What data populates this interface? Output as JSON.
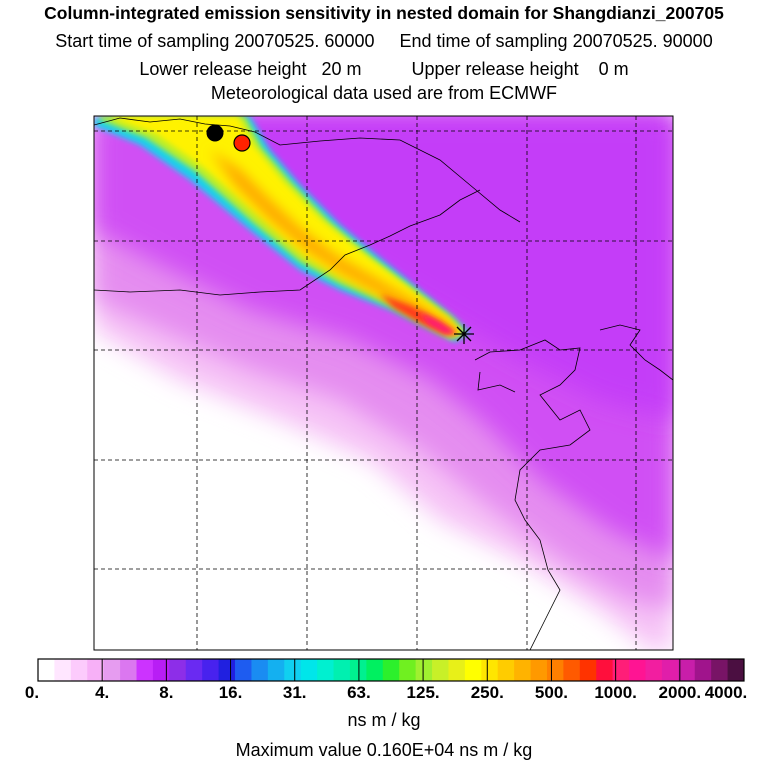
{
  "header": {
    "title": "Column-integrated emission sensitivity in nested domain for Shangdianzi_200705",
    "sampling_line": "Start time of sampling 20070525. 60000     End time of sampling 20070525. 90000",
    "release_line": "Lower release height   20 m          Upper release height    0 m",
    "met_line": "Meteorological data used are from ECMWF"
  },
  "colorbar": {
    "labels": [
      "0.",
      "4.",
      "8.",
      "16.",
      "31.",
      "63.",
      "125.",
      "250.",
      "500.",
      "1000.",
      "2000.",
      "4000."
    ],
    "colors": [
      "#ffffff",
      "#ffe6ff",
      "#fccbfc",
      "#f7b0f7",
      "#e69cf0",
      "#db77f0",
      "#cc33ff",
      "#b81ef5",
      "#8d2ee8",
      "#6a2af2",
      "#4822ee",
      "#2020e0",
      "#1e5cf0",
      "#1a8cf2",
      "#14b0f0",
      "#10d0f0",
      "#00e6ea",
      "#00f0d0",
      "#00f0b0",
      "#00f090",
      "#00f060",
      "#2cf02c",
      "#70f020",
      "#a0f030",
      "#c8f028",
      "#e8f018",
      "#ffff00",
      "#ffe600",
      "#ffcc00",
      "#ffb300",
      "#ff9900",
      "#ff7f00",
      "#ff5a00",
      "#ff3300",
      "#ff0f3c",
      "#ff1e78",
      "#ff1493",
      "#f21ea0",
      "#e01eaa",
      "#c81eaa",
      "#a0148c",
      "#781466",
      "#4b0f41"
    ],
    "units": "ns m / kg",
    "max_value_text": "Maximum value  0.160E+04 ns m / kg"
  },
  "map": {
    "receptor_marker": "receptor-star-icon",
    "markers": [
      {
        "name": "black-circle-marker",
        "color": "#000000"
      },
      {
        "name": "red-circle-marker",
        "color": "#ff2200"
      }
    ]
  }
}
